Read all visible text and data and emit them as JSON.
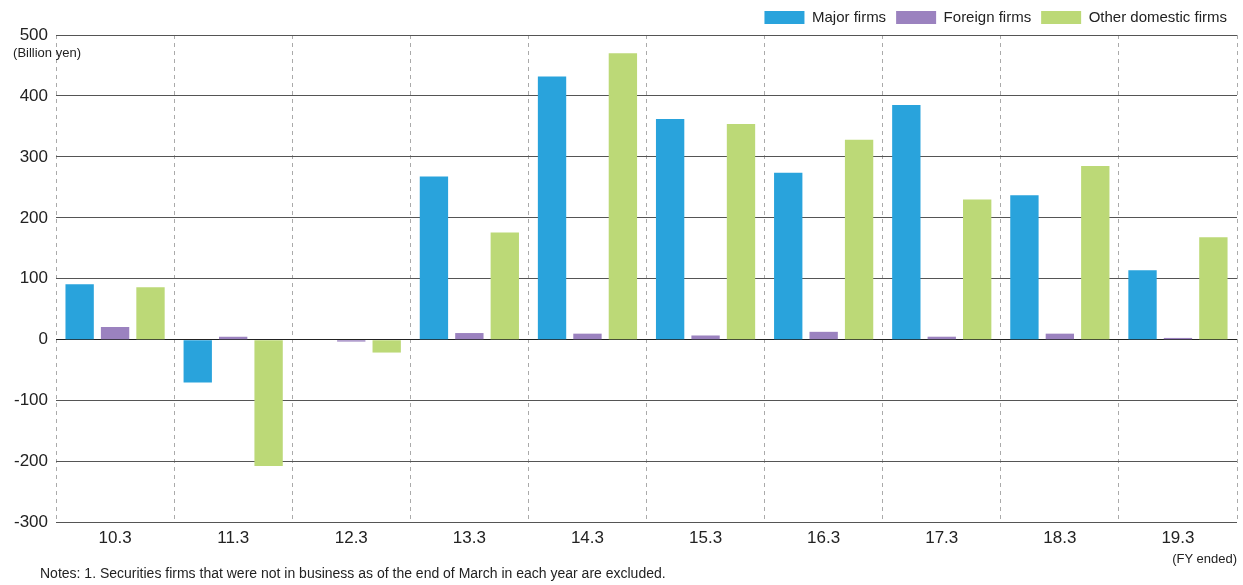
{
  "chart_data": {
    "type": "bar",
    "ylabel": "(Billion yen)",
    "xlabel": "(FY ended)",
    "categories": [
      "10.3",
      "11.3",
      "12.3",
      "13.3",
      "14.3",
      "15.3",
      "16.3",
      "17.3",
      "18.3",
      "19.3"
    ],
    "series": [
      {
        "name": "Major firms",
        "color": "#29a3dc",
        "values": [
          91,
          -70,
          0,
          268,
          432,
          362,
          274,
          385,
          237,
          114
        ]
      },
      {
        "name": "Foreign firms",
        "color": "#9b82bf",
        "values": [
          21,
          5,
          -3,
          11,
          10,
          7,
          13,
          5,
          10,
          3
        ]
      },
      {
        "name": "Other domestic firms",
        "color": "#bcd977",
        "values": [
          86,
          -207,
          -21,
          176,
          470,
          354,
          328,
          230,
          285,
          168
        ]
      }
    ],
    "ylim": [
      -300,
      500
    ],
    "yticks": [
      -300,
      -200,
      -100,
      0,
      100,
      200,
      300,
      400,
      500
    ],
    "grid": true,
    "legend": "top right",
    "annotations": [
      "Notes: 1. Securities firms that were not in business as of the end of March in each year are excluded."
    ]
  }
}
